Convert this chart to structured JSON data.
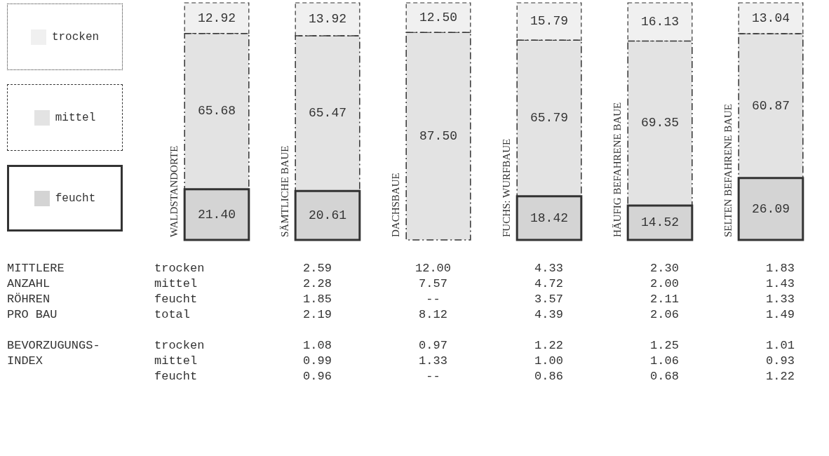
{
  "chart_data": {
    "type": "bar",
    "stacked": true,
    "legend": "left",
    "tick_labels": false,
    "categories": [
      "WALDSTANDORTE",
      "SÄMTLICHE BAUE",
      "DACHSBAUE",
      "FUCHS: WURFBAUE",
      "HÄUFIG BEFAHRENE BAUE",
      "SELTEN BEFAHRENE BAUE"
    ],
    "series": [
      {
        "name": "feucht",
        "color": "#d4d4d4",
        "line_style": "solid",
        "values": [
          21.4,
          20.61,
          null,
          18.42,
          14.52,
          26.09
        ],
        "value_labels": [
          "21.40",
          "20.61",
          null,
          "18.42",
          "14.52",
          "26.09"
        ]
      },
      {
        "name": "mittel",
        "color": "#e3e3e3",
        "line_style": "dashed",
        "values": [
          65.68,
          65.47,
          87.5,
          65.79,
          69.35,
          60.87
        ],
        "value_labels": [
          "65.68",
          "65.47",
          "87.50",
          "65.79",
          "69.35",
          "60.87"
        ]
      },
      {
        "name": "trocken",
        "color": "#f0f0f0",
        "line_style": "dotted",
        "values": [
          12.92,
          13.92,
          12.5,
          15.79,
          16.13,
          13.04
        ],
        "value_labels": [
          "12.92",
          "13.92",
          "12.50",
          "15.79",
          "16.13",
          "13.04"
        ]
      }
    ],
    "annotations": [
      "MITTLERE\nANZAHL\nRÖHREN\nPRO BAU",
      "trocken",
      "2.59",
      "12.00",
      "4.33",
      "2.30",
      "1.83",
      "mittel",
      "2.28",
      "7.57",
      "4.72",
      "2.00",
      "1.43",
      "feucht",
      "1.85",
      "--",
      "3.57",
      "2.11",
      "1.33",
      "total",
      "2.19",
      "8.12",
      "4.39",
      "2.06",
      "1.49",
      "BEVORZUGUNGS-\nINDEX",
      "trocken",
      "1.08",
      "0.97",
      "1.22",
      "1.25",
      "1.01",
      "mittel",
      "0.99",
      "1.33",
      "1.00",
      "1.06",
      "0.93",
      "feucht",
      "0.96",
      "--",
      "0.86",
      "0.68",
      "1.22"
    ]
  }
}
